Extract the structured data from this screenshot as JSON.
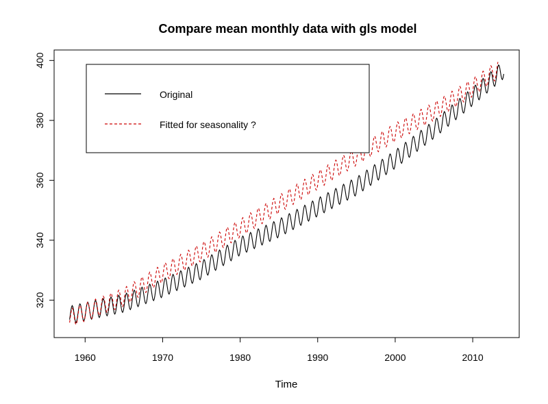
{
  "chart_data": {
    "type": "line",
    "title": "Compare mean monthly data with gls model",
    "xlabel": "Time",
    "ylabel": "",
    "xlim": [
      1956,
      2016
    ],
    "ylim": [
      307.5,
      403.5
    ],
    "x_ticks": [
      "1960",
      "1970",
      "1980",
      "1990",
      "2000",
      "2010"
    ],
    "y_ticks": [
      "320",
      "340",
      "360",
      "380",
      "400"
    ],
    "grid": false,
    "legend_position": "top-left",
    "seasonal_amplitude": 3,
    "series": [
      {
        "name": "Original",
        "color": "#000000",
        "dash": "solid",
        "x_start": 1958.0,
        "x_end": 2014.0,
        "trend_x": [
          1958,
          1965,
          1970,
          1975,
          1980,
          1985,
          1990,
          1995,
          2000,
          2005,
          2010,
          2014
        ],
        "trend_y": [
          315,
          319,
          324,
          330,
          338,
          344,
          351,
          358,
          367,
          377,
          388,
          397
        ]
      },
      {
        "name": "Fitted for seasonality ?",
        "color": "#cc0000",
        "dash": "dashed",
        "x_start": 1958.0,
        "x_end": 2013.3,
        "trend_x": [
          1958,
          1965,
          1970,
          1975,
          1980,
          1985,
          1990,
          1995,
          2000,
          2005,
          2010,
          2013.3
        ],
        "trend_y": [
          314,
          321,
          329,
          336,
          344,
          352,
          360,
          368,
          376,
          383,
          391,
          397
        ]
      }
    ]
  }
}
